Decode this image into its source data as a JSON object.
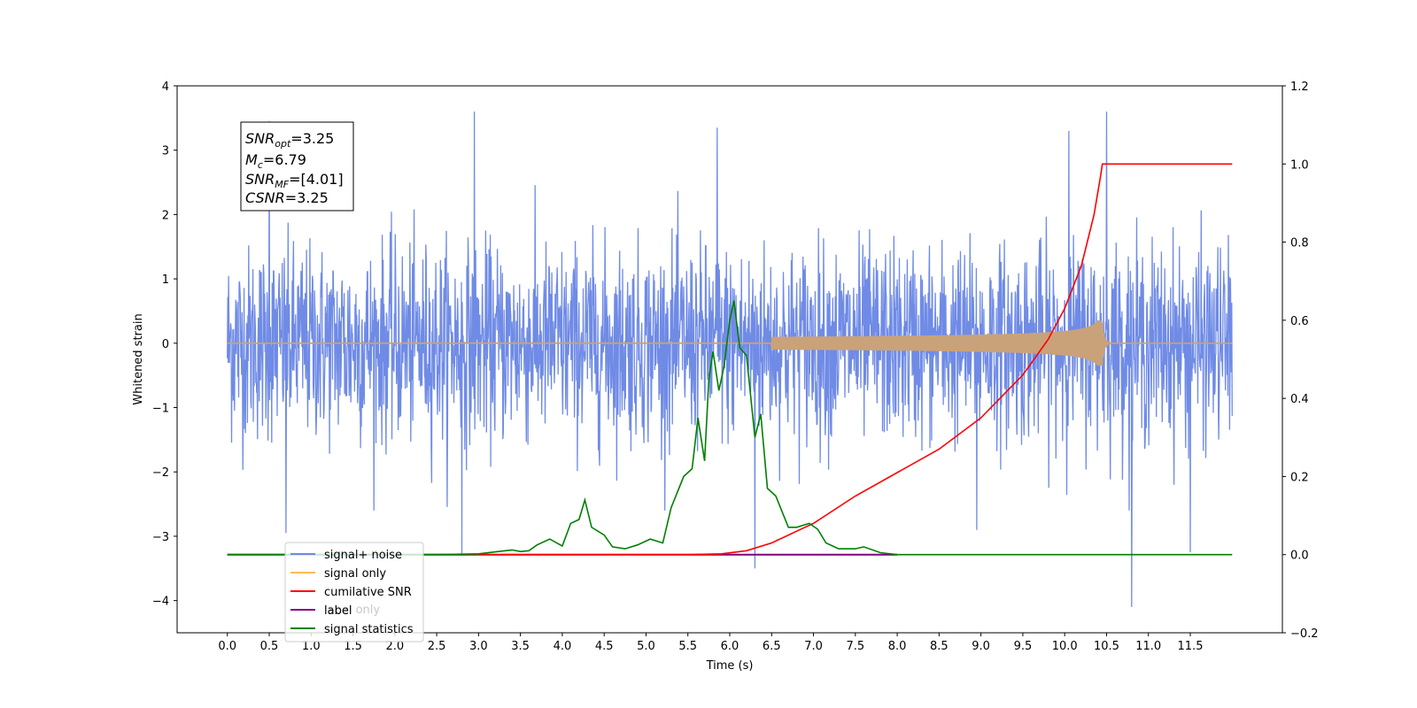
{
  "chart_data": {
    "type": "line",
    "xlabel": "Time (s)",
    "ylabel": "Whitened strain",
    "xlim": [
      -0.6,
      12.6
    ],
    "ylim_left": [
      -4.5,
      4.0
    ],
    "ylim_right": [
      -0.2,
      1.2
    ],
    "x_ticks": [
      0.0,
      0.5,
      1.0,
      1.5,
      2.0,
      2.5,
      3.0,
      3.5,
      4.0,
      4.5,
      5.0,
      5.5,
      6.0,
      6.5,
      7.0,
      7.5,
      8.0,
      8.5,
      9.0,
      9.5,
      10.0,
      10.5,
      11.0,
      11.5
    ],
    "x_tick_labels": [
      "0.0",
      "0.5",
      "1.0",
      "1.5",
      "2.0",
      "2.5",
      "3.0",
      "3.5",
      "4.0",
      "4.5",
      "5.0",
      "5.5",
      "6.0",
      "6.5",
      "7.0",
      "7.5",
      "8.0",
      "8.5",
      "9.0",
      "9.5",
      "10.0",
      "10.5",
      "11.0",
      "11.5"
    ],
    "y_left_ticks": [
      4,
      3,
      2,
      1,
      0,
      -1,
      -2,
      -3,
      -4
    ],
    "y_left_tick_labels": [
      "4",
      "3",
      "2",
      "1",
      "0",
      "−1",
      "−2",
      "−3",
      "−4"
    ],
    "y_right_ticks": [
      1.2,
      1.0,
      0.8,
      0.6,
      0.4,
      0.2,
      0.0,
      -0.2
    ],
    "y_right_tick_labels": [
      "1.2",
      "1.0",
      "0.8",
      "0.6",
      "0.4",
      "0.2",
      "0.0",
      "−0.2"
    ],
    "grid": false,
    "legend_position": "lower-left",
    "annotation": {
      "snr_opt": {
        "main": "SNR",
        "sub": "opt",
        "value": "=3.25"
      },
      "mc": {
        "main": "M",
        "sub": "c",
        "value": "=6.79"
      },
      "snr_mf": {
        "main": "SNR",
        "sub": "MF",
        "value": "=[4.01]"
      },
      "csnr": {
        "main": "CSNR",
        "sub": "",
        "value": "=3.25"
      }
    },
    "series": [
      {
        "name": "signal+ noise",
        "color": "#6f8be6",
        "axis": "left",
        "kind": "noise",
        "x_range": [
          0.0,
          12.0
        ],
        "std": 0.75,
        "peak_points": [
          [
            0.5,
            3.45
          ],
          [
            2.95,
            3.6
          ],
          [
            5.85,
            3.35
          ],
          [
            10.5,
            3.6
          ],
          [
            10.05,
            3.3
          ],
          [
            0.7,
            -2.95
          ],
          [
            2.8,
            -3.3
          ],
          [
            6.3,
            -3.5
          ],
          [
            10.8,
            -4.1
          ],
          [
            11.5,
            -3.25
          ],
          [
            8.95,
            -2.9
          ]
        ]
      },
      {
        "name": "signal only",
        "color": "#ffbb55",
        "fill_color": "#c9a27a",
        "axis": "left",
        "kind": "chirp",
        "x_range": [
          0.0,
          12.0
        ],
        "merger_time": 10.45,
        "peak_amplitude": 0.35
      },
      {
        "name": "cumilative SNR",
        "color": "#ff0000",
        "axis": "right",
        "points": [
          [
            0.0,
            0.0
          ],
          [
            5.0,
            0.0
          ],
          [
            5.5,
            0.0
          ],
          [
            5.9,
            0.002
          ],
          [
            6.2,
            0.01
          ],
          [
            6.5,
            0.03
          ],
          [
            6.8,
            0.06
          ],
          [
            7.0,
            0.08
          ],
          [
            7.5,
            0.15
          ],
          [
            8.0,
            0.21
          ],
          [
            8.5,
            0.27
          ],
          [
            9.0,
            0.35
          ],
          [
            9.5,
            0.46
          ],
          [
            9.8,
            0.55
          ],
          [
            10.0,
            0.63
          ],
          [
            10.2,
            0.74
          ],
          [
            10.35,
            0.87
          ],
          [
            10.43,
            0.97
          ],
          [
            10.45,
            1.0
          ],
          [
            12.0,
            1.0
          ]
        ]
      },
      {
        "name": "label",
        "color": "#800080",
        "axis": "right",
        "points": [
          [
            0.0,
            0.0
          ],
          [
            8.0,
            0.0
          ]
        ]
      },
      {
        "name": "label only",
        "color": "#dddddd",
        "axis": "right",
        "points": []
      },
      {
        "name": "signal statistics",
        "color": "#008000",
        "axis": "right",
        "points": [
          [
            0.0,
            0.0
          ],
          [
            1.0,
            0.0
          ],
          [
            2.0,
            0.0
          ],
          [
            2.5,
            0.0
          ],
          [
            3.0,
            0.002
          ],
          [
            3.2,
            0.007
          ],
          [
            3.4,
            0.012
          ],
          [
            3.5,
            0.008
          ],
          [
            3.6,
            0.01
          ],
          [
            3.7,
            0.025
          ],
          [
            3.85,
            0.04
          ],
          [
            4.0,
            0.022
          ],
          [
            4.1,
            0.08
          ],
          [
            4.2,
            0.09
          ],
          [
            4.27,
            0.14
          ],
          [
            4.35,
            0.07
          ],
          [
            4.5,
            0.05
          ],
          [
            4.6,
            0.02
          ],
          [
            4.75,
            0.015
          ],
          [
            4.9,
            0.025
          ],
          [
            5.05,
            0.04
          ],
          [
            5.2,
            0.03
          ],
          [
            5.3,
            0.12
          ],
          [
            5.45,
            0.2
          ],
          [
            5.55,
            0.22
          ],
          [
            5.62,
            0.35
          ],
          [
            5.7,
            0.24
          ],
          [
            5.75,
            0.45
          ],
          [
            5.8,
            0.52
          ],
          [
            5.87,
            0.42
          ],
          [
            5.93,
            0.48
          ],
          [
            6.0,
            0.6
          ],
          [
            6.05,
            0.65
          ],
          [
            6.12,
            0.53
          ],
          [
            6.2,
            0.51
          ],
          [
            6.3,
            0.3
          ],
          [
            6.37,
            0.36
          ],
          [
            6.45,
            0.17
          ],
          [
            6.55,
            0.15
          ],
          [
            6.7,
            0.07
          ],
          [
            6.8,
            0.07
          ],
          [
            6.95,
            0.08
          ],
          [
            7.05,
            0.065
          ],
          [
            7.15,
            0.03
          ],
          [
            7.3,
            0.015
          ],
          [
            7.5,
            0.015
          ],
          [
            7.6,
            0.02
          ],
          [
            7.8,
            0.005
          ],
          [
            8.0,
            0.0
          ],
          [
            9.0,
            0.0
          ],
          [
            10.0,
            0.0
          ],
          [
            12.0,
            0.0
          ]
        ]
      }
    ],
    "legend": [
      {
        "label": "signal+ noise",
        "color": "#6f8be6"
      },
      {
        "label": "signal only",
        "color": "#ffbb55"
      },
      {
        "label": "cumilative SNR",
        "color": "#ff0000"
      },
      {
        "label": "label",
        "color": "#800080"
      },
      {
        "label": "signal statistics",
        "color": "#008000"
      }
    ],
    "legend_ghost_text": "label only"
  }
}
